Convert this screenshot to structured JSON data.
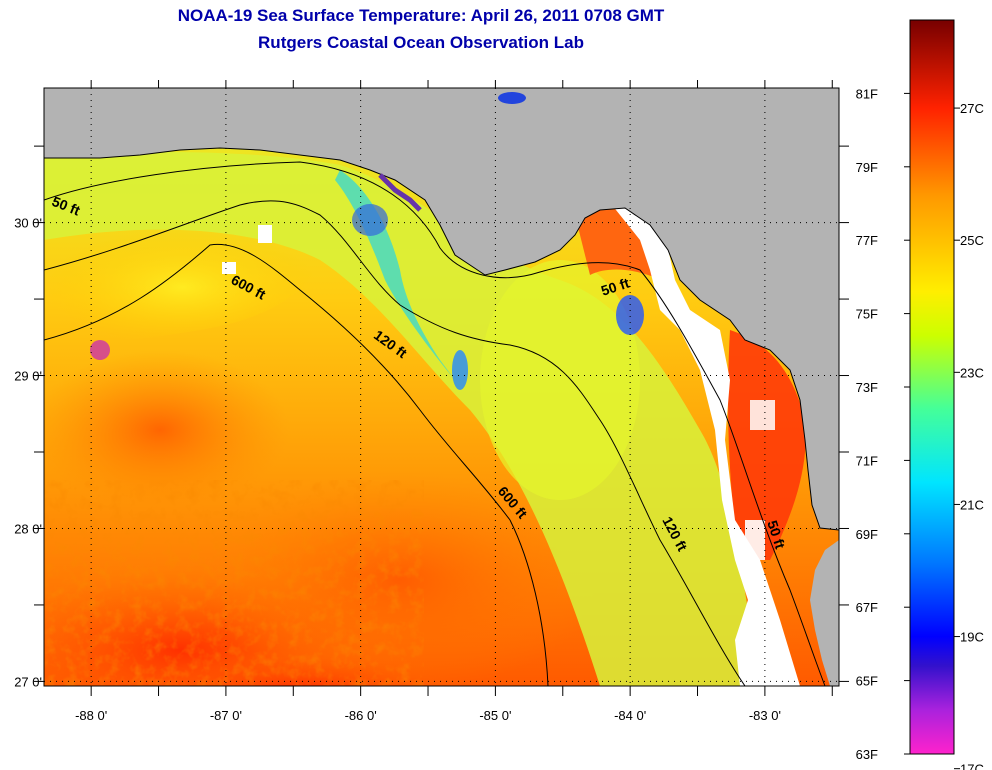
{
  "title": {
    "line1": "NOAA-19 Sea Surface Temperature:  April 26, 2011 0708 GMT",
    "line2": "Rutgers Coastal Ocean Observation Lab"
  },
  "map": {
    "lon_range": [
      -88.35,
      -82.45
    ],
    "lat_range": [
      26.97,
      30.88
    ],
    "lon_ticks": [
      {
        "value": -88,
        "label": "-88 0'"
      },
      {
        "value": -87,
        "label": "-87 0'"
      },
      {
        "value": -86,
        "label": "-86 0'"
      },
      {
        "value": -85,
        "label": "-85 0'"
      },
      {
        "value": -84,
        "label": "-84 0'"
      },
      {
        "value": -83,
        "label": "-83 0'"
      }
    ],
    "lat_ticks": [
      {
        "value": 30,
        "label": "30 0'"
      },
      {
        "value": 29,
        "label": "29 0'"
      },
      {
        "value": 28,
        "label": "28 0'"
      },
      {
        "value": 27,
        "label": "27 0'"
      }
    ],
    "land_color": "#b3b3b3",
    "no_data_color": "#ffffff",
    "contour_labels": [
      {
        "text": "50 ft",
        "lon": -88.2,
        "lat": 30.08,
        "rotate": 22
      },
      {
        "text": "600 ft",
        "lon": -86.85,
        "lat": 29.55,
        "rotate": 28
      },
      {
        "text": "120 ft",
        "lon": -85.8,
        "lat": 29.18,
        "rotate": 36
      },
      {
        "text": "50 ft",
        "lon": -84.1,
        "lat": 29.55,
        "rotate": -18
      },
      {
        "text": "600 ft",
        "lon": -84.9,
        "lat": 28.15,
        "rotate": 50
      },
      {
        "text": "120 ft",
        "lon": -83.7,
        "lat": 27.95,
        "rotate": 62
      },
      {
        "text": "50 ft",
        "lon": -82.95,
        "lat": 27.95,
        "rotate": 72
      }
    ]
  },
  "colorbar": {
    "stops": [
      {
        "t": 0.0,
        "color": "#ff22cc"
      },
      {
        "t": 0.06,
        "color": "#aa22dd"
      },
      {
        "t": 0.12,
        "color": "#3311cc"
      },
      {
        "t": 0.16,
        "color": "#0000ff"
      },
      {
        "t": 0.26,
        "color": "#0077ff"
      },
      {
        "t": 0.37,
        "color": "#00e5ff"
      },
      {
        "t": 0.47,
        "color": "#44ff99"
      },
      {
        "t": 0.57,
        "color": "#ccff00"
      },
      {
        "t": 0.63,
        "color": "#ffee00"
      },
      {
        "t": 0.76,
        "color": "#ff9900"
      },
      {
        "t": 0.88,
        "color": "#ff2200"
      },
      {
        "t": 1.0,
        "color": "#770000"
      }
    ],
    "f_labels": [
      "63F",
      "65F",
      "67F",
      "69F",
      "71F",
      "73F",
      "75F",
      "77F",
      "79F",
      "81F"
    ],
    "c_labels": [
      "17C",
      "19C",
      "21C",
      "23C",
      "25C",
      "27C"
    ]
  }
}
